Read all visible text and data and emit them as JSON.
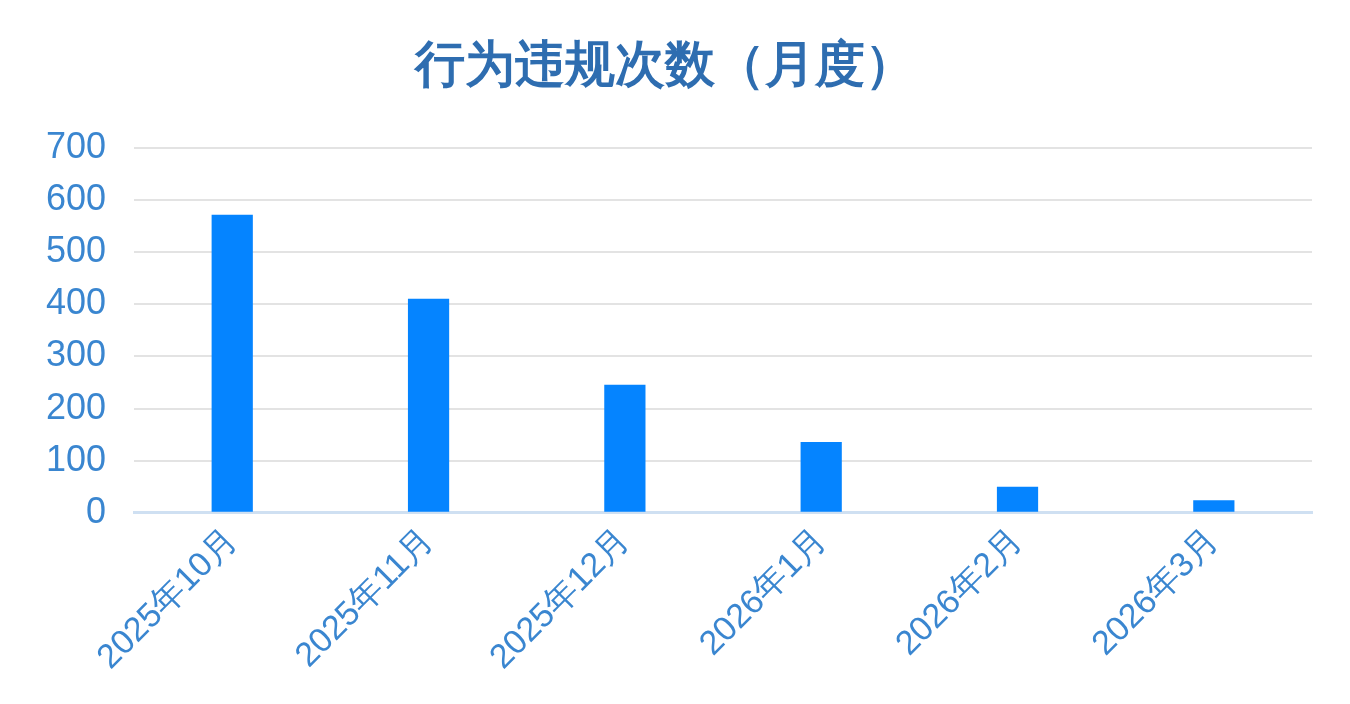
{
  "chart_data": {
    "type": "bar",
    "title": "行为违规次数（月度）",
    "categories": [
      "2025年10月",
      "2025年11月",
      "2025年12月",
      "2026年1月",
      "2026年2月",
      "2026年3月"
    ],
    "values": [
      572,
      411,
      246,
      136,
      50,
      24
    ],
    "color": "#0584ff",
    "ylim": [
      0,
      700
    ],
    "yticks": [
      0,
      100,
      200,
      300,
      400,
      500,
      600,
      700
    ],
    "grid": "y",
    "legend": false
  }
}
